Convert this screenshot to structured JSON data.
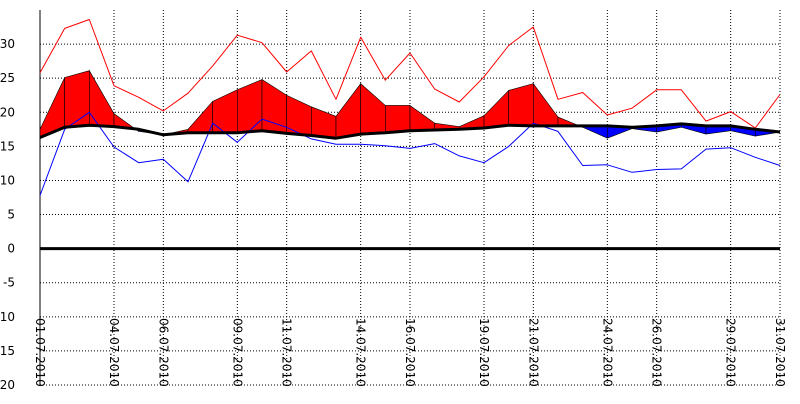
{
  "chart_data": {
    "type": "line",
    "title": "",
    "xlabel": "",
    "ylabel": "",
    "ylim": [
      -20,
      35
    ],
    "yticks": [
      30,
      25,
      20,
      15,
      10,
      5,
      0,
      -5,
      -10,
      -15,
      -20
    ],
    "x": [
      "01.07.2010",
      "02.07.2010",
      "03.07.2010",
      "04.07.2010",
      "05.07.2010",
      "06.07.2010",
      "07.07.2010",
      "08.07.2010",
      "09.07.2010",
      "10.07.2010",
      "11.07.2010",
      "12.07.2010",
      "13.07.2010",
      "14.07.2010",
      "15.07.2010",
      "16.07.2010",
      "17.07.2010",
      "18.07.2010",
      "19.07.2010",
      "20.07.2010",
      "21.07.2010",
      "22.07.2010",
      "23.07.2010",
      "24.07.2010",
      "25.07.2010",
      "26.07.2010",
      "27.07.2010",
      "28.07.2010",
      "29.07.2010",
      "30.07.2010",
      "31.07.2010"
    ],
    "x_tick_labels": [
      "01.07.2010",
      "04.07.2010",
      "06.07.2010",
      "09.07.2010",
      "11.07.2010",
      "14.07.2010",
      "16.07.2010",
      "19.07.2010",
      "21.07.2010",
      "24.07.2010",
      "26.07.2010",
      "29.07.2010",
      "31.07.2010"
    ],
    "x_tick_index": [
      0,
      3,
      5,
      8,
      10,
      13,
      15,
      18,
      20,
      23,
      25,
      28,
      30
    ],
    "grid": true,
    "zero_line": true,
    "colors": {
      "max": "#ff0000",
      "min": "#0000ff",
      "mean": "#000000",
      "above": "#ff0000",
      "below": "#0000ff"
    },
    "series": [
      {
        "key": "max",
        "values": [
          25.8,
          32.3,
          33.6,
          23.9,
          22.2,
          20.2,
          22.8,
          26.8,
          31.3,
          30.2,
          25.9,
          29.0,
          21.9,
          31.0,
          24.7,
          28.7,
          23.4,
          21.5,
          25.2,
          29.8,
          32.5,
          21.9,
          22.9,
          19.6,
          20.6,
          23.3,
          23.3,
          18.7,
          20.1,
          17.7,
          22.6
        ]
      },
      {
        "key": "min",
        "values": [
          7.8,
          17.5,
          20.0,
          14.9,
          12.6,
          13.1,
          9.8,
          18.4,
          15.6,
          19.0,
          17.8,
          16.1,
          15.3,
          15.3,
          15.1,
          14.7,
          15.4,
          13.6,
          12.6,
          15.0,
          18.4,
          17.2,
          12.2,
          12.3,
          11.2,
          11.6,
          11.7,
          14.6,
          14.8,
          13.4,
          12.2
        ]
      },
      {
        "key": "mean",
        "values": [
          16.3,
          17.8,
          18.1,
          17.9,
          17.5,
          16.7,
          17.0,
          17.0,
          17.0,
          17.3,
          16.9,
          16.6,
          16.2,
          16.8,
          17.0,
          17.3,
          17.4,
          17.5,
          17.7,
          18.1,
          18.0,
          18.0,
          18.0,
          18.0,
          17.8,
          18.0,
          18.3,
          18.0,
          18.0,
          17.5,
          17.1
        ]
      },
      {
        "key": "actual",
        "values": [
          17.5,
          25.1,
          26.1,
          19.8,
          17.2,
          16.7,
          17.5,
          21.6,
          23.3,
          24.8,
          22.5,
          20.8,
          19.4,
          24.2,
          21.0,
          21.0,
          18.4,
          17.9,
          19.5,
          23.2,
          24.2,
          19.3,
          17.8,
          16.2,
          17.6,
          17.1,
          17.8,
          16.8,
          17.3,
          16.5,
          17.1
        ]
      }
    ]
  }
}
